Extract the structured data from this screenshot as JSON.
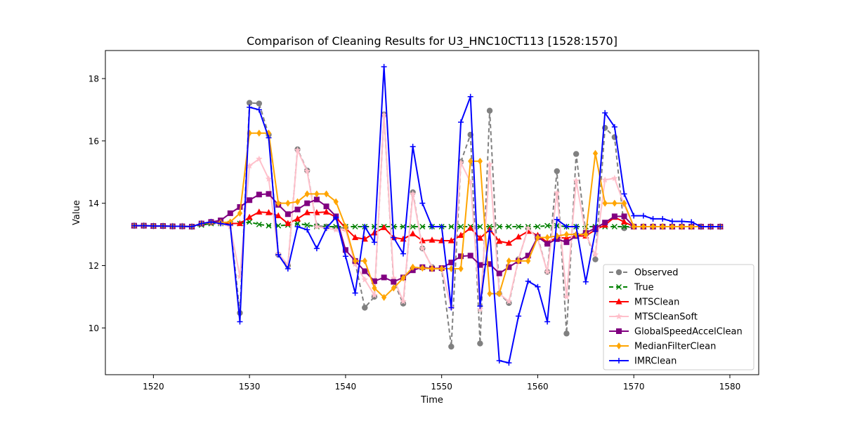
{
  "chart_data": {
    "type": "line",
    "title": "Comparison of Cleaning Results for U3_HNC10CT113 [1528:1570]",
    "xlabel": "Time",
    "ylabel": "Value",
    "xlim": [
      1515,
      1583
    ],
    "ylim": [
      8.5,
      18.9
    ],
    "xticks": [
      1520,
      1530,
      1540,
      1550,
      1560,
      1570,
      1580
    ],
    "yticks": [
      10,
      12,
      14,
      16,
      18
    ],
    "grid": false,
    "legend_position": "lower-right",
    "x": [
      1518,
      1519,
      1520,
      1521,
      1522,
      1523,
      1524,
      1525,
      1526,
      1527,
      1528,
      1529,
      1530,
      1531,
      1532,
      1533,
      1534,
      1535,
      1536,
      1537,
      1538,
      1539,
      1540,
      1541,
      1542,
      1543,
      1544,
      1545,
      1546,
      1547,
      1548,
      1549,
      1550,
      1551,
      1552,
      1553,
      1554,
      1555,
      1556,
      1557,
      1558,
      1559,
      1560,
      1561,
      1562,
      1563,
      1564,
      1565,
      1566,
      1567,
      1568,
      1569,
      1570,
      1571,
      1572,
      1573,
      1574,
      1575,
      1576,
      1577,
      1578,
      1579
    ],
    "series": [
      {
        "name": "Observed",
        "color": "#808080",
        "dash": "6,4",
        "marker": "circle",
        "values": [
          13.28,
          13.28,
          13.27,
          13.27,
          13.26,
          13.26,
          13.25,
          13.35,
          13.4,
          13.4,
          13.35,
          10.48,
          17.22,
          17.2,
          16.2,
          12.35,
          12.0,
          15.73,
          15.05,
          13.28,
          13.25,
          13.2,
          13.22,
          12.1,
          10.65,
          11.0,
          16.85,
          11.5,
          10.78,
          14.35,
          12.55,
          11.95,
          11.9,
          9.4,
          15.33,
          16.2,
          9.5,
          16.97,
          11.1,
          10.8,
          12.2,
          13.2,
          12.9,
          11.8,
          15.03,
          9.82,
          15.58,
          13.05,
          12.2,
          16.42,
          16.12,
          13.2,
          13.25,
          13.25,
          13.25,
          13.25,
          13.25,
          13.25,
          13.25,
          13.25,
          13.25,
          13.25
        ]
      },
      {
        "name": "True",
        "color": "#008000",
        "dash": "6,4",
        "marker": "x",
        "values": [
          13.28,
          13.28,
          13.27,
          13.27,
          13.26,
          13.26,
          13.25,
          13.3,
          13.35,
          13.35,
          13.35,
          13.35,
          13.4,
          13.32,
          13.28,
          13.28,
          13.3,
          13.35,
          13.3,
          13.25,
          13.25,
          13.25,
          13.25,
          13.25,
          13.25,
          13.25,
          13.25,
          13.25,
          13.25,
          13.25,
          13.25,
          13.25,
          13.25,
          13.25,
          13.25,
          13.25,
          13.25,
          13.25,
          13.25,
          13.25,
          13.25,
          13.25,
          13.25,
          13.28,
          13.28,
          13.25,
          13.25,
          13.25,
          13.25,
          13.25,
          13.25,
          13.25,
          13.25,
          13.25,
          13.25,
          13.25,
          13.25,
          13.25,
          13.25,
          13.25,
          13.25,
          13.25
        ]
      },
      {
        "name": "MTSClean",
        "color": "#ff0000",
        "dash": "",
        "marker": "triangle",
        "values": [
          13.28,
          13.28,
          13.27,
          13.27,
          13.26,
          13.26,
          13.25,
          13.35,
          13.4,
          13.4,
          13.35,
          13.35,
          13.55,
          13.72,
          13.7,
          13.6,
          13.35,
          13.5,
          13.7,
          13.7,
          13.72,
          13.55,
          13.2,
          12.9,
          12.85,
          13.05,
          13.22,
          12.9,
          12.85,
          13.02,
          12.8,
          12.82,
          12.8,
          12.8,
          12.97,
          13.2,
          12.88,
          13.15,
          12.78,
          12.72,
          12.92,
          13.1,
          12.97,
          12.75,
          12.9,
          12.88,
          12.95,
          12.95,
          13.15,
          13.3,
          13.55,
          13.4,
          13.25,
          13.25,
          13.25,
          13.25,
          13.25,
          13.25,
          13.25,
          13.25,
          13.25,
          13.25
        ]
      },
      {
        "name": "MTSCleanSoft",
        "color": "#ffc0cb",
        "dash": "",
        "marker": "star",
        "values": [
          13.28,
          13.28,
          13.27,
          13.27,
          13.26,
          13.26,
          13.25,
          13.35,
          13.4,
          13.35,
          13.25,
          11.65,
          15.2,
          15.42,
          14.78,
          12.38,
          12.03,
          15.7,
          15.03,
          13.25,
          13.2,
          13.15,
          13.15,
          12.05,
          11.55,
          11.05,
          16.83,
          11.6,
          10.85,
          14.3,
          12.55,
          11.95,
          11.9,
          10.65,
          15.3,
          14.68,
          10.6,
          15.25,
          11.1,
          10.85,
          12.2,
          13.2,
          12.85,
          11.8,
          14.33,
          11.0,
          14.72,
          13.0,
          12.35,
          14.75,
          14.8,
          13.95,
          13.25,
          13.25,
          13.25,
          13.25,
          13.25,
          13.25,
          13.25,
          13.25,
          13.25,
          13.25
        ]
      },
      {
        "name": "GlobalSpeedAccelClean",
        "color": "#800080",
        "dash": "",
        "marker": "square",
        "values": [
          13.28,
          13.28,
          13.27,
          13.27,
          13.26,
          13.26,
          13.25,
          13.35,
          13.4,
          13.45,
          13.68,
          13.88,
          14.1,
          14.28,
          14.3,
          13.95,
          13.65,
          13.8,
          14.0,
          14.12,
          13.9,
          13.58,
          12.5,
          12.15,
          11.82,
          11.5,
          11.62,
          11.48,
          11.62,
          11.85,
          11.95,
          11.9,
          11.92,
          12.1,
          12.3,
          12.32,
          12.02,
          12.05,
          11.75,
          11.95,
          12.15,
          12.32,
          12.92,
          12.7,
          12.85,
          12.75,
          12.95,
          13.05,
          13.2,
          13.38,
          13.58,
          13.58,
          13.25,
          13.25,
          13.25,
          13.25,
          13.25,
          13.25,
          13.25,
          13.25,
          13.25,
          13.25
        ]
      },
      {
        "name": "MedianFilterClean",
        "color": "#ffa500",
        "dash": "",
        "marker": "diamond",
        "values": [
          13.28,
          13.28,
          13.27,
          13.27,
          13.26,
          13.26,
          13.25,
          13.35,
          13.38,
          13.38,
          13.4,
          13.68,
          16.25,
          16.25,
          16.25,
          14.0,
          14.0,
          14.05,
          14.3,
          14.3,
          14.3,
          14.05,
          13.25,
          12.15,
          12.15,
          11.28,
          10.98,
          11.28,
          11.6,
          11.95,
          11.92,
          11.9,
          11.9,
          11.9,
          11.9,
          15.35,
          15.35,
          11.1,
          11.1,
          12.15,
          12.15,
          12.15,
          12.9,
          12.9,
          12.95,
          13.0,
          13.0,
          13.0,
          15.6,
          14.0,
          14.0,
          14.0,
          13.25,
          13.25,
          13.25,
          13.25,
          13.25,
          13.25,
          13.25,
          13.25,
          13.25,
          13.25
        ]
      },
      {
        "name": "IMRClean",
        "color": "#0000ff",
        "dash": "",
        "marker": "plus",
        "values": [
          13.28,
          13.28,
          13.27,
          13.27,
          13.26,
          13.26,
          13.25,
          13.35,
          13.4,
          13.35,
          13.3,
          10.2,
          17.08,
          17.0,
          16.1,
          12.35,
          11.9,
          13.25,
          13.15,
          12.55,
          13.2,
          13.55,
          12.3,
          11.12,
          13.25,
          12.75,
          18.38,
          12.9,
          12.38,
          15.82,
          14.0,
          13.25,
          13.25,
          10.65,
          16.6,
          17.42,
          10.7,
          13.1,
          8.95,
          8.88,
          10.38,
          11.5,
          11.32,
          10.2,
          13.48,
          13.25,
          13.25,
          11.48,
          13.1,
          16.9,
          16.45,
          14.3,
          13.6,
          13.6,
          13.5,
          13.5,
          13.42,
          13.42,
          13.4,
          13.25,
          13.25,
          13.25
        ]
      }
    ]
  }
}
